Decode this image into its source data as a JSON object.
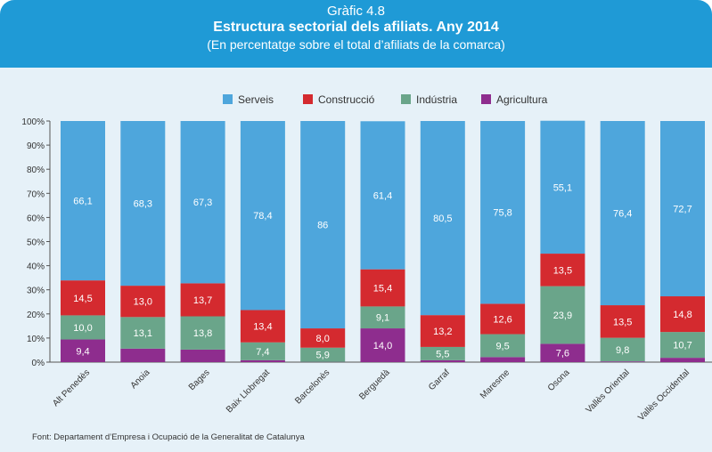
{
  "header": {
    "label": "Gràfic 4.8",
    "title": "Estructura sectorial dels afiliats. Any 2014",
    "subtitle": "(En percentatge sobre el total d’afiliats de la comarca)"
  },
  "footnote": "Font: Departament d’Empresa i Ocupació de la Generalitat de Catalunya",
  "chart_data": {
    "type": "bar",
    "stacked": true,
    "title": "Estructura sectorial dels afiliats. Any 2014",
    "subtitle": "(En percentatge sobre el total d’afiliats de la comarca)",
    "categories": [
      "Alt Penedès",
      "Anoia",
      "Bages",
      "Baix Llobregat",
      "Barcelonès",
      "Berguedà",
      "Garraf",
      "Maresme",
      "Osona",
      "Vallès Oriental",
      "Vallès Occidental"
    ],
    "series": [
      {
        "name": "Agricultura",
        "color": "#8e2d8e",
        "values": [
          9.4,
          5.6,
          5.2,
          0.8,
          0.1,
          14.0,
          0.8,
          2.1,
          7.6,
          0.3,
          1.8
        ],
        "labels": [
          "9,4",
          "",
          "",
          "",
          "",
          "14,0",
          "",
          "",
          "7,6",
          "",
          ""
        ]
      },
      {
        "name": "Indústria",
        "color": "#6aa58a",
        "values": [
          10.0,
          13.1,
          13.8,
          7.4,
          5.9,
          9.1,
          5.5,
          9.5,
          23.9,
          9.8,
          10.7
        ],
        "labels": [
          "10,0",
          "13,1",
          "13,8",
          "7,4",
          "5,9",
          "9,1",
          "5,5",
          "9,5",
          "23,9",
          "9,8",
          "10,7"
        ]
      },
      {
        "name": "Construcció",
        "color": "#d42a2f",
        "values": [
          14.5,
          13.0,
          13.7,
          13.4,
          8.0,
          15.4,
          13.2,
          12.6,
          13.5,
          13.5,
          14.8
        ],
        "labels": [
          "14,5",
          "13,0",
          "13,7",
          "13,4",
          "8,0",
          "15,4",
          "13,2",
          "12,6",
          "13,5",
          "13,5",
          "14,8"
        ]
      },
      {
        "name": "Serveis",
        "color": "#4ea6dc",
        "values": [
          66.1,
          68.3,
          67.3,
          78.4,
          86,
          61.4,
          80.5,
          75.8,
          55.1,
          76.4,
          72.7
        ],
        "labels": [
          "66,1",
          "68,3",
          "67,3",
          "78,4",
          "86",
          "61,4",
          "80,5",
          "75,8",
          "55,1",
          "76,4",
          "72,7"
        ]
      }
    ],
    "legend": {
      "order": [
        "Serveis",
        "Construcció",
        "Indústria",
        "Agricultura"
      ],
      "position": "top-center"
    },
    "yticks": [
      "0%",
      "10%",
      "20%",
      "30%",
      "40%",
      "50%",
      "60%",
      "70%",
      "80%",
      "90%",
      "100%"
    ],
    "ylim": [
      0,
      100
    ],
    "grid": false
  }
}
